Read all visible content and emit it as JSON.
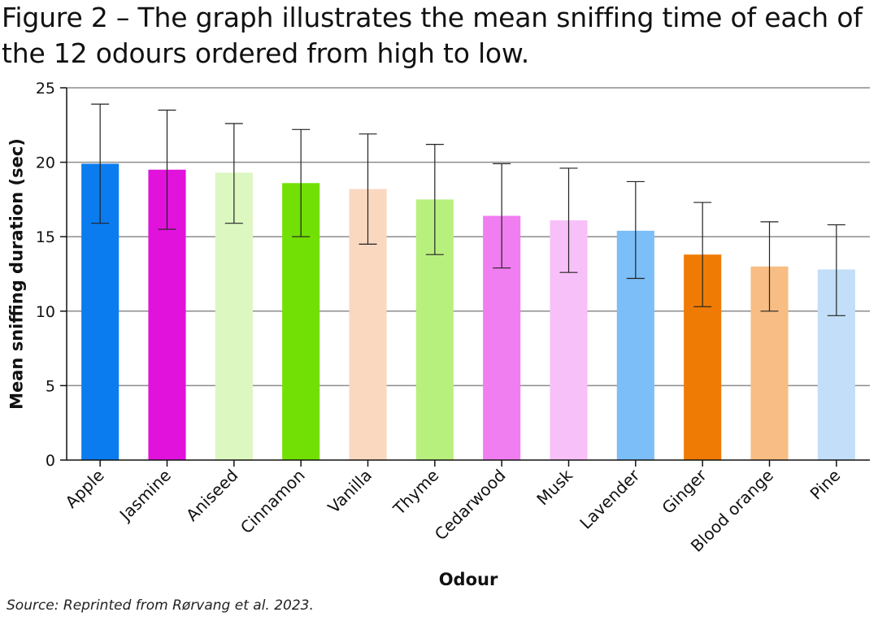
{
  "figure": {
    "title": "Figure 2 – The graph illustrates the mean sniffing time of each of the 12 odours ordered from high to low.",
    "source": "Source: Reprinted from Rørvang et al. 2023."
  },
  "chart_data": {
    "type": "bar",
    "title": "",
    "xlabel": "Odour",
    "ylabel": "Mean sniffing duration (sec)",
    "ylim": [
      0,
      25
    ],
    "yticks": [
      0,
      5,
      10,
      15,
      20,
      25
    ],
    "grid": "horizontal",
    "categories": [
      "Apple",
      "Jasmine",
      "Aniseed",
      "Cinnamon",
      "Vanilla",
      "Thyme",
      "Cedarwood",
      "Musk",
      "Lavender",
      "Ginger",
      "Blood orange",
      "Pine"
    ],
    "values": [
      19.9,
      19.5,
      19.3,
      18.6,
      18.2,
      17.5,
      16.4,
      16.1,
      15.4,
      13.8,
      13.0,
      12.8
    ],
    "error_low": [
      15.9,
      15.5,
      15.9,
      15.0,
      14.5,
      13.8,
      12.9,
      12.6,
      12.2,
      10.3,
      10.0,
      9.7
    ],
    "error_high": [
      23.9,
      23.5,
      22.6,
      22.2,
      21.9,
      21.2,
      19.9,
      19.6,
      18.7,
      17.3,
      16.0,
      15.8
    ],
    "colors": [
      "#0a7cf0",
      "#e012dc",
      "#dcf7c0",
      "#72e004",
      "#fad8c0",
      "#b8f07e",
      "#f07ef0",
      "#f8c0f8",
      "#7cbef8",
      "#ef7b05",
      "#f8bd84",
      "#c2def8"
    ]
  }
}
